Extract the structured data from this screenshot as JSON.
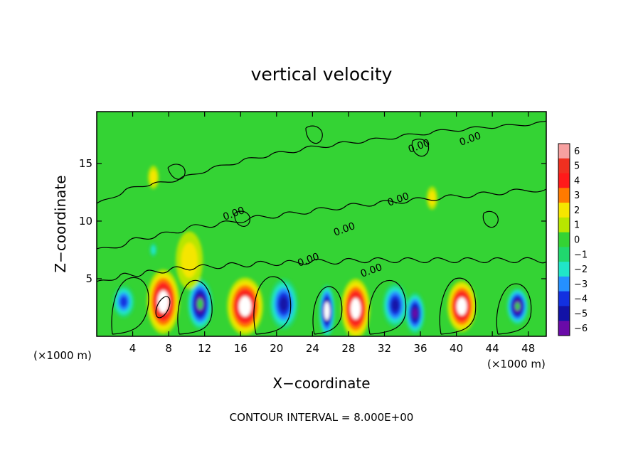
{
  "chart_data": {
    "type": "heatmap",
    "title": "vertical velocity",
    "xlabel": "X−coordinate",
    "ylabel": "Z−coordinate",
    "x_unit_label": "(×1000 m)",
    "xlim": [
      0,
      50
    ],
    "ylim": [
      0,
      19.5
    ],
    "x_ticks": [
      4,
      8,
      12,
      16,
      20,
      24,
      28,
      32,
      36,
      40,
      44,
      48
    ],
    "y_ticks": [
      5,
      10,
      15
    ],
    "colorbar": {
      "ticks": [
        6,
        5,
        4,
        3,
        2,
        1,
        0,
        -1,
        -2,
        -3,
        -4,
        -5,
        -6
      ],
      "colors": [
        "#f7a0a0",
        "#f03020",
        "#ff1a1a",
        "#ff7a00",
        "#f5e600",
        "#b8e600",
        "#34d334",
        "#20d86e",
        "#20e6c8",
        "#2590ff",
        "#1230e0",
        "#1212a6",
        "#6a0aa8"
      ]
    },
    "contour_labels": [
      "0.00",
      "0.00",
      "0.00",
      "0.00",
      "0.00",
      "0.00",
      "0.00"
    ],
    "footer": "CONTOUR INTERVAL = 8.000E+00",
    "features": [
      {
        "x": 3.0,
        "z": 3.0,
        "w": -3.5,
        "rx": 1.2,
        "rz": 1.4
      },
      {
        "x": 7.4,
        "z": 3.0,
        "w": 7.0,
        "rx": 1.8,
        "rz": 2.8
      },
      {
        "x": 11.5,
        "z": 2.8,
        "w": -6.5,
        "rx": 1.4,
        "rz": 2.2
      },
      {
        "x": 16.5,
        "z": 2.6,
        "w": 7.0,
        "rx": 2.0,
        "rz": 2.5
      },
      {
        "x": 20.8,
        "z": 2.8,
        "w": -5.0,
        "rx": 1.6,
        "rz": 2.2
      },
      {
        "x": 25.6,
        "z": 2.2,
        "w": -7.0,
        "rx": 0.9,
        "rz": 2.3
      },
      {
        "x": 28.8,
        "z": 2.4,
        "w": 7.0,
        "rx": 1.6,
        "rz": 2.6
      },
      {
        "x": 33.2,
        "z": 2.7,
        "w": -5.0,
        "rx": 1.4,
        "rz": 1.9
      },
      {
        "x": 35.4,
        "z": 2.0,
        "w": -6.0,
        "rx": 1.1,
        "rz": 1.8
      },
      {
        "x": 40.6,
        "z": 2.6,
        "w": 7.0,
        "rx": 1.6,
        "rz": 2.2
      },
      {
        "x": 46.8,
        "z": 2.6,
        "w": -6.5,
        "rx": 1.2,
        "rz": 1.6
      },
      {
        "x": 10.3,
        "z": 6.6,
        "w": 2.2,
        "rx": 1.5,
        "rz": 2.5
      },
      {
        "x": 6.3,
        "z": 7.5,
        "w": -2.0,
        "rx": 0.4,
        "rz": 0.6
      },
      {
        "x": 6.3,
        "z": 13.8,
        "w": 1.6,
        "rx": 0.6,
        "rz": 1.0
      },
      {
        "x": 37.3,
        "z": 12.0,
        "w": 1.6,
        "rx": 0.6,
        "rz": 1.0
      }
    ]
  }
}
